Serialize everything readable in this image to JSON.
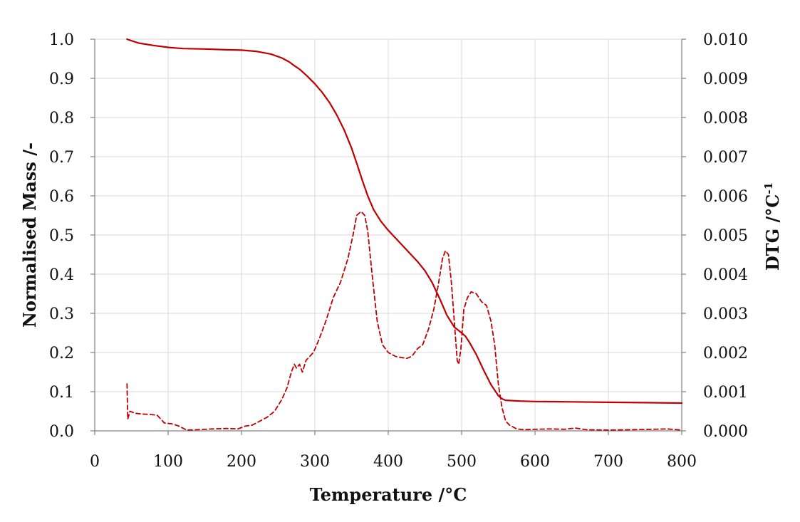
{
  "chart_data": {
    "type": "line",
    "xlabel": "Temperature /°C",
    "ylabel": "Normalised Mass /-",
    "y2label_main": "DTG  /°C",
    "y2label_sup": "-1",
    "xlim": [
      0,
      800
    ],
    "ylim": [
      0,
      1.0
    ],
    "y2lim": [
      0,
      0.01
    ],
    "grid": true,
    "xticks": [
      0,
      100,
      200,
      300,
      400,
      500,
      600,
      700,
      800
    ],
    "xtick_labels": [
      "0",
      "100",
      "200",
      "300",
      "400",
      "500",
      "600",
      "700",
      "800"
    ],
    "yticks": [
      0,
      0.1,
      0.2,
      0.3,
      0.4,
      0.5,
      0.6,
      0.7,
      0.8,
      0.9,
      1.0
    ],
    "ytick_labels": [
      "0.0",
      "0.1",
      "0.2",
      "0.3",
      "0.4",
      "0.5",
      "0.6",
      "0.7",
      "0.8",
      "0.9",
      "1.0"
    ],
    "y2ticks": [
      0,
      0.001,
      0.002,
      0.003,
      0.004,
      0.005,
      0.006,
      0.007,
      0.008,
      0.009,
      0.01
    ],
    "y2tick_labels": [
      "0.000",
      "0.001",
      "0.002",
      "0.003",
      "0.004",
      "0.005",
      "0.006",
      "0.007",
      "0.008",
      "0.009",
      "0.010"
    ],
    "colors": {
      "series": "#c00000",
      "grid": "#d9d9d9",
      "axis": "#808080"
    },
    "series": [
      {
        "axis": "left",
        "style": "solid",
        "x": [
          44,
          50,
          60,
          80,
          100,
          120,
          150,
          180,
          200,
          220,
          240,
          255,
          265,
          270,
          280,
          290,
          300,
          310,
          320,
          330,
          340,
          350,
          358,
          365,
          372,
          380,
          390,
          400,
          420,
          440,
          450,
          460,
          470,
          480,
          490,
          500,
          505,
          510,
          520,
          530,
          540,
          550,
          555,
          560,
          580,
          600,
          650,
          700,
          750,
          800
        ],
        "y": [
          1.0,
          0.996,
          0.99,
          0.984,
          0.979,
          0.976,
          0.975,
          0.973,
          0.972,
          0.969,
          0.962,
          0.952,
          0.942,
          0.935,
          0.922,
          0.905,
          0.886,
          0.864,
          0.838,
          0.806,
          0.768,
          0.722,
          0.678,
          0.638,
          0.6,
          0.565,
          0.535,
          0.512,
          0.472,
          0.432,
          0.409,
          0.378,
          0.338,
          0.295,
          0.265,
          0.25,
          0.242,
          0.228,
          0.195,
          0.155,
          0.118,
          0.09,
          0.082,
          0.078,
          0.076,
          0.075,
          0.074,
          0.073,
          0.072,
          0.071
        ]
      },
      {
        "axis": "right",
        "style": "dashed",
        "x": [
          44,
          45,
          48,
          55,
          65,
          75,
          85,
          95,
          105,
          115,
          125,
          140,
          160,
          180,
          195,
          205,
          215,
          225,
          235,
          245,
          255,
          262,
          268,
          272,
          275,
          279,
          283,
          288,
          293,
          298,
          305,
          315,
          325,
          335,
          345,
          352,
          357,
          363,
          368,
          372,
          378,
          385,
          392,
          400,
          410,
          425,
          432,
          440,
          447,
          455,
          462,
          468,
          474,
          478,
          482,
          486,
          490,
          494,
          496,
          499,
          503,
          508,
          513,
          520,
          527,
          534,
          540,
          545,
          550,
          555,
          560,
          565,
          575,
          585,
          600,
          620,
          640,
          655,
          670,
          700,
          730,
          760,
          780,
          800
        ],
        "y": [
          0.0012,
          0.0003,
          0.0005,
          0.00045,
          0.00043,
          0.00042,
          0.0004,
          0.0002,
          0.00018,
          0.00012,
          2e-05,
          3e-05,
          5e-05,
          6e-05,
          5e-05,
          0.00012,
          0.00015,
          0.00025,
          0.00035,
          0.0005,
          0.0008,
          0.0011,
          0.0015,
          0.0017,
          0.0016,
          0.0017,
          0.0015,
          0.0018,
          0.0019,
          0.002,
          0.0023,
          0.0028,
          0.0034,
          0.0038,
          0.0044,
          0.005,
          0.0055,
          0.0056,
          0.0055,
          0.0051,
          0.004,
          0.0028,
          0.0022,
          0.002,
          0.0019,
          0.00185,
          0.0019,
          0.0021,
          0.0022,
          0.0026,
          0.0031,
          0.0037,
          0.0044,
          0.0046,
          0.0045,
          0.0038,
          0.0028,
          0.0018,
          0.0017,
          0.0021,
          0.0031,
          0.0034,
          0.00355,
          0.0035,
          0.0033,
          0.0032,
          0.0028,
          0.0022,
          0.0012,
          0.0006,
          0.00025,
          0.00015,
          5e-05,
          3e-05,
          4e-05,
          5e-05,
          4e-05,
          7e-05,
          3e-05,
          2e-05,
          3e-05,
          4e-05,
          5e-05,
          2e-05
        ]
      }
    ]
  }
}
